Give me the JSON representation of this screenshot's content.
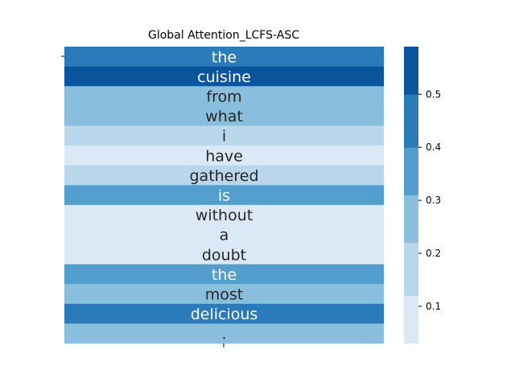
{
  "chart_data": {
    "type": "heatmap",
    "title": "Global Attention_LCFS-ASC",
    "tokens": [
      "the",
      "cuisine",
      "from",
      "what",
      "i",
      "have",
      "gathered",
      "is",
      "without",
      "a",
      "doubt",
      "the",
      "most",
      "delicious",
      "."
    ],
    "values": [
      0.43,
      0.58,
      0.24,
      0.24,
      0.18,
      0.07,
      0.18,
      0.33,
      0.07,
      0.07,
      0.07,
      0.33,
      0.24,
      0.43,
      0.24
    ],
    "x_tick_label": "",
    "y_tick_label": "",
    "colorbar": {
      "vmin": 0.03,
      "vmax": 0.59,
      "ticks": [
        "0.1",
        "0.2",
        "0.3",
        "0.4",
        "0.5"
      ],
      "tick_values": [
        0.1,
        0.2,
        0.3,
        0.4,
        0.5
      ],
      "bins": [
        {
          "from": 0.03,
          "to": 0.12,
          "color": "#dbe9f6"
        },
        {
          "from": 0.12,
          "to": 0.22,
          "color": "#bad6eb"
        },
        {
          "from": 0.22,
          "to": 0.31,
          "color": "#89bedc"
        },
        {
          "from": 0.31,
          "to": 0.4,
          "color": "#539ecd"
        },
        {
          "from": 0.4,
          "to": 0.5,
          "color": "#2b7bba"
        },
        {
          "from": 0.5,
          "to": 0.59,
          "color": "#0b559f"
        }
      ]
    }
  }
}
